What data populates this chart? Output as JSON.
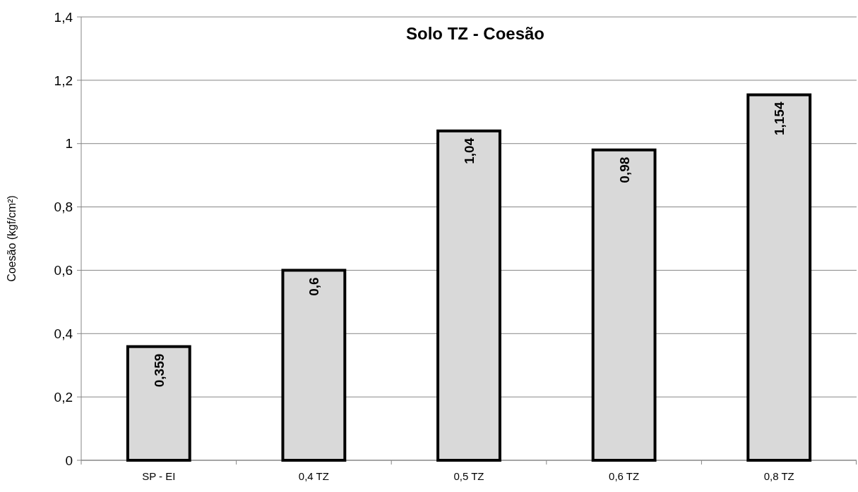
{
  "chart_data": {
    "type": "bar",
    "title": "Solo TZ - Coesão",
    "ylabel": "Coesão (kgf/cm²)",
    "categories": [
      "SP - EI",
      "0,4 TZ",
      "0,5 TZ",
      "0,6 TZ",
      "0,8 TZ"
    ],
    "values": [
      0.359,
      0.6,
      1.04,
      0.98,
      1.154
    ],
    "value_labels": [
      "0,359",
      "0,6",
      "1,04",
      "0,98",
      "1,154"
    ],
    "color": "#d9d9d9",
    "ylim": [
      0,
      1.4
    ],
    "yticks": [
      0,
      {
        "value": 0.2,
        "label": "0,2"
      },
      {
        "value": 0.4,
        "label": "0,4"
      },
      {
        "value": 0.6,
        "label": "0,6"
      },
      {
        "value": 0.8,
        "label": "0,8"
      },
      1,
      {
        "value": 1.2,
        "label": "1,2"
      },
      {
        "value": 1.4,
        "label": "1,4"
      }
    ],
    "grid": "y"
  }
}
